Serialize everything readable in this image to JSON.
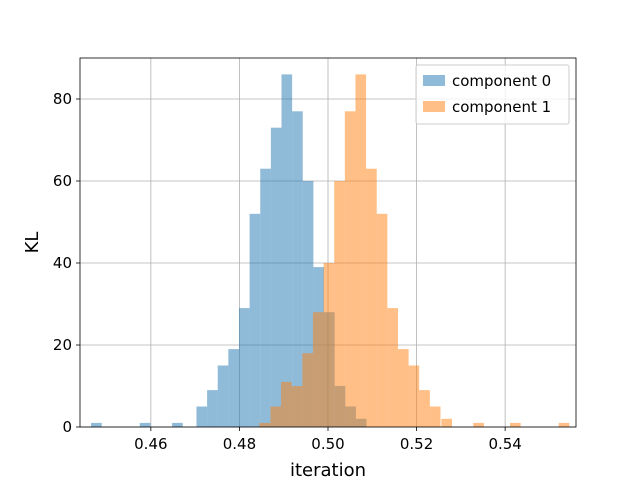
{
  "chart_data": {
    "type": "histogram",
    "title": "",
    "xlabel": "iteration",
    "ylabel": "KL",
    "xlim": [
      0.444,
      0.556
    ],
    "ylim": [
      0,
      90
    ],
    "xticks": [
      0.46,
      0.48,
      0.5,
      0.52,
      0.54
    ],
    "xtick_labels": [
      "0.46",
      "0.48",
      "0.50",
      "0.52",
      "0.54"
    ],
    "yticks": [
      0,
      20,
      40,
      60,
      80
    ],
    "ytick_labels": [
      "0",
      "20",
      "40",
      "60",
      "80"
    ],
    "grid": true,
    "legend_position": "top-right",
    "series": [
      {
        "name": "component 0",
        "color": "#1f77b4",
        "opacity": 0.5,
        "bins": [
          {
            "x0": 0.4465,
            "x1": 0.4489,
            "count": 1
          },
          {
            "x0": 0.4575,
            "x1": 0.4599,
            "count": 1
          },
          {
            "x0": 0.4648,
            "x1": 0.4672,
            "count": 1
          },
          {
            "x0": 0.4703,
            "x1": 0.4727,
            "count": 5
          },
          {
            "x0": 0.4727,
            "x1": 0.4751,
            "count": 9
          },
          {
            "x0": 0.4751,
            "x1": 0.4775,
            "count": 15
          },
          {
            "x0": 0.4775,
            "x1": 0.4799,
            "count": 19
          },
          {
            "x0": 0.4799,
            "x1": 0.4823,
            "count": 29
          },
          {
            "x0": 0.4823,
            "x1": 0.4847,
            "count": 52
          },
          {
            "x0": 0.4847,
            "x1": 0.4871,
            "count": 63
          },
          {
            "x0": 0.4871,
            "x1": 0.4895,
            "count": 73
          },
          {
            "x0": 0.4895,
            "x1": 0.4919,
            "count": 86
          },
          {
            "x0": 0.4919,
            "x1": 0.4943,
            "count": 77
          },
          {
            "x0": 0.4943,
            "x1": 0.4967,
            "count": 60
          },
          {
            "x0": 0.4967,
            "x1": 0.4991,
            "count": 39
          },
          {
            "x0": 0.4991,
            "x1": 0.5015,
            "count": 28
          },
          {
            "x0": 0.5015,
            "x1": 0.5039,
            "count": 10
          },
          {
            "x0": 0.5039,
            "x1": 0.5063,
            "count": 5
          },
          {
            "x0": 0.5063,
            "x1": 0.5087,
            "count": 2
          }
        ]
      },
      {
        "name": "component 1",
        "color": "#ff7f0e",
        "opacity": 0.5,
        "bins": [
          {
            "x0": 0.4845,
            "x1": 0.487,
            "count": 1
          },
          {
            "x0": 0.487,
            "x1": 0.4894,
            "count": 5
          },
          {
            "x0": 0.4894,
            "x1": 0.4918,
            "count": 11
          },
          {
            "x0": 0.4918,
            "x1": 0.4942,
            "count": 10
          },
          {
            "x0": 0.4942,
            "x1": 0.4966,
            "count": 18
          },
          {
            "x0": 0.4966,
            "x1": 0.499,
            "count": 28
          },
          {
            "x0": 0.499,
            "x1": 0.5014,
            "count": 40
          },
          {
            "x0": 0.5014,
            "x1": 0.5038,
            "count": 60
          },
          {
            "x0": 0.5038,
            "x1": 0.5062,
            "count": 77
          },
          {
            "x0": 0.5062,
            "x1": 0.5086,
            "count": 86
          },
          {
            "x0": 0.5086,
            "x1": 0.511,
            "count": 63
          },
          {
            "x0": 0.511,
            "x1": 0.5134,
            "count": 52
          },
          {
            "x0": 0.5134,
            "x1": 0.5158,
            "count": 29
          },
          {
            "x0": 0.5158,
            "x1": 0.5182,
            "count": 19
          },
          {
            "x0": 0.5182,
            "x1": 0.5206,
            "count": 15
          },
          {
            "x0": 0.5206,
            "x1": 0.523,
            "count": 9
          },
          {
            "x0": 0.523,
            "x1": 0.5254,
            "count": 5
          },
          {
            "x0": 0.5256,
            "x1": 0.528,
            "count": 2
          },
          {
            "x0": 0.5328,
            "x1": 0.5352,
            "count": 1
          },
          {
            "x0": 0.5411,
            "x1": 0.5435,
            "count": 1
          },
          {
            "x0": 0.5521,
            "x1": 0.5545,
            "count": 1
          }
        ]
      }
    ]
  }
}
